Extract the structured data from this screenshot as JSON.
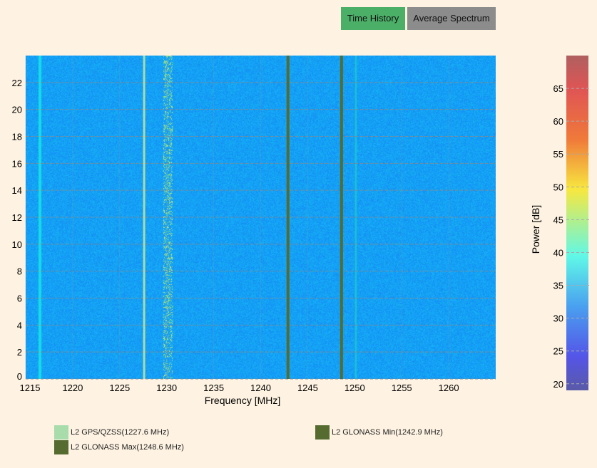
{
  "toolbar": {
    "time_history": "Time History",
    "average_spectrum": "Average Spectrum",
    "active": "Time History",
    "active_color": "#4caf68",
    "inactive_color": "#8c8c8c"
  },
  "chart_data": {
    "type": "heatmap",
    "xlabel": "Frequency [MHz]",
    "ylabel": "",
    "xlim": [
      1215,
      1265
    ],
    "ylim": [
      0,
      24
    ],
    "xticks": [
      1215,
      1220,
      1225,
      1230,
      1235,
      1240,
      1245,
      1250,
      1255,
      1260
    ],
    "yticks": [
      0,
      2,
      4,
      6,
      8,
      10,
      12,
      14,
      16,
      18,
      20,
      22
    ],
    "grid": true,
    "colorbar": {
      "label": "Power [dB]",
      "range": [
        19,
        70
      ],
      "ticks": [
        20,
        25,
        30,
        35,
        40,
        45,
        50,
        55,
        60,
        65
      ],
      "colormap": "spectral"
    },
    "markers": [
      {
        "name": "L2 GPS/QZSS(1227.6 MHz)",
        "x": 1227.6,
        "color": "#a8dcaa"
      },
      {
        "name": "L2 GLONASS Min(1242.9 MHz)",
        "x": 1242.9,
        "color": "#556b2f"
      },
      {
        "name": "L2 GLONASS Max(1248.6 MHz)",
        "x": 1248.6,
        "color": "#556b2f"
      }
    ]
  }
}
